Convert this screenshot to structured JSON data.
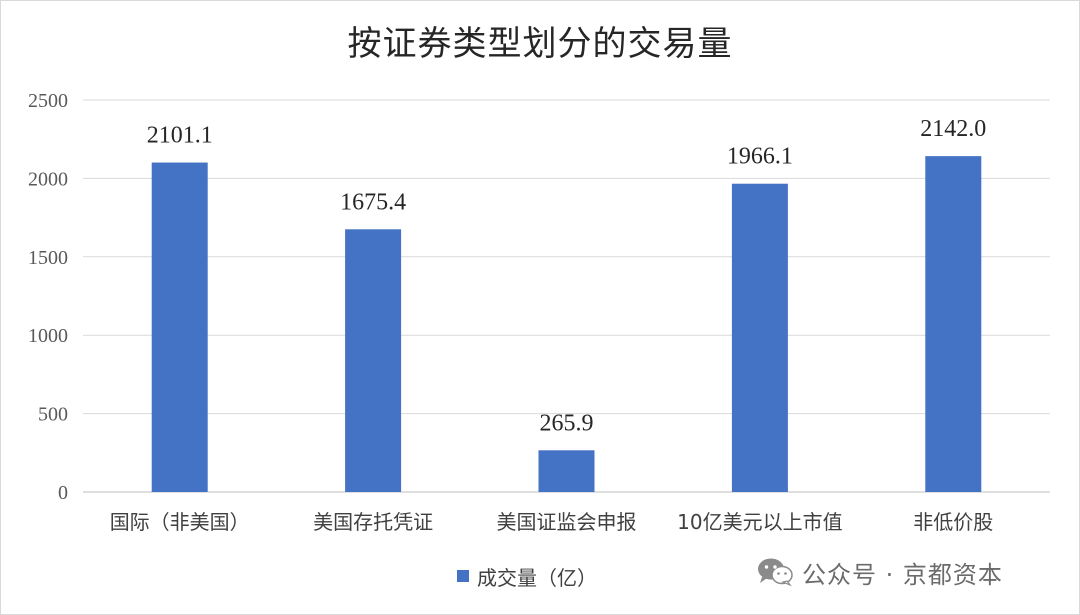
{
  "chart_data": {
    "type": "bar",
    "title": "按证券类型划分的交易量",
    "categories": [
      "国际（非美国）",
      "美国存托凭证",
      "美国证监会申报",
      "10亿美元以上市值",
      "非低价股"
    ],
    "series": [
      {
        "name": "成交量（亿）",
        "values": [
          2101.1,
          1675.4,
          265.9,
          1966.1,
          2142.0
        ],
        "color": "#4472c4"
      }
    ],
    "data_labels": [
      "2101.1",
      "1675.4",
      "265.9",
      "1966.1",
      "2142.0"
    ],
    "yticks": [
      0,
      500,
      1000,
      1500,
      2000,
      2500
    ],
    "ylim": [
      0,
      2500
    ],
    "grid": true,
    "legend_position": "bottom"
  },
  "legend": {
    "label": "成交量（亿）"
  },
  "watermark": {
    "text": "公众号 · 京都资本",
    "icon": "wechat-icon"
  }
}
